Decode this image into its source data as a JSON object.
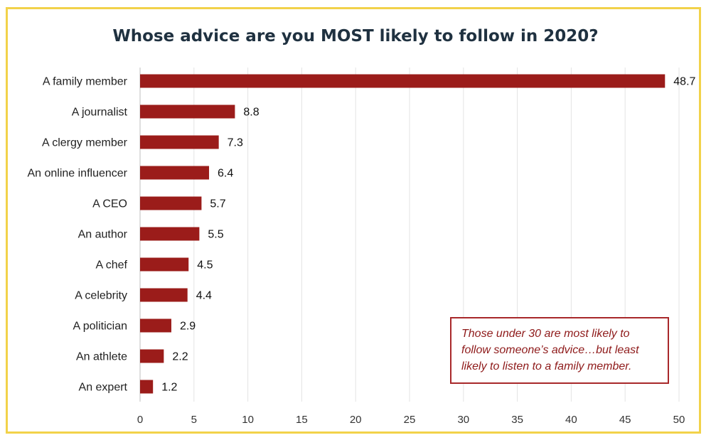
{
  "chart_data": {
    "type": "bar",
    "orientation": "horizontal",
    "title": "Whose advice are you MOST likely to follow in 2020?",
    "categories": [
      "A family member",
      "A journalist",
      "A clergy member",
      "An online influencer",
      "A CEO",
      "An author",
      "A chef",
      "A celebrity",
      "A politician",
      "An athlete",
      "An expert"
    ],
    "values": [
      48.7,
      8.8,
      7.3,
      6.4,
      5.7,
      5.5,
      4.5,
      4.4,
      2.9,
      2.2,
      1.2
    ],
    "value_labels": [
      "48.7",
      "8.8",
      "7.3",
      "6.4",
      "5.7",
      "5.5",
      "4.5",
      "4.4",
      "2.9",
      "2.2",
      "1.2"
    ],
    "xlim": [
      0,
      50
    ],
    "x_ticks": [
      "0",
      "5",
      "10",
      "15",
      "20",
      "25",
      "30",
      "35",
      "40",
      "45",
      "50"
    ],
    "grid": "vertical",
    "bar_color": "#9b1c1a",
    "annotation": "Those under 30 are most likely to follow someone’s advice…but least likely to listen to a family member."
  }
}
